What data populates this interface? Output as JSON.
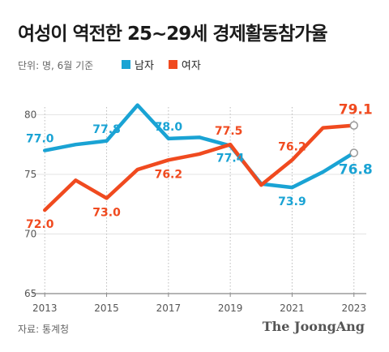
{
  "title": "여성이 역전한 25~29세 경제활동참가율",
  "unit_note": "단위: 명, 6월 기준",
  "source": "자료: 통계청",
  "brand": "The JoongAng",
  "colors": {
    "male": "#1aa3d4",
    "female": "#f04a1f",
    "grid": "#e3e3e3",
    "axis": "#888888"
  },
  "chart_data": {
    "type": "line",
    "x": [
      2013,
      2014,
      2015,
      2016,
      2017,
      2018,
      2019,
      2020,
      2021,
      2022,
      2023
    ],
    "series": [
      {
        "name": "남자",
        "color": "#1aa3d4",
        "values": [
          77.0,
          77.5,
          77.8,
          80.8,
          78.0,
          78.1,
          77.4,
          74.2,
          73.9,
          75.2,
          76.8
        ]
      },
      {
        "name": "여자",
        "color": "#f04a1f",
        "values": [
          72.0,
          74.5,
          73.0,
          75.4,
          76.2,
          76.7,
          77.5,
          74.1,
          76.2,
          78.9,
          79.1
        ]
      }
    ],
    "data_labels": {
      "남자": [
        {
          "x": 2013,
          "text": "77.0"
        },
        {
          "x": 2015,
          "text": "77.8"
        },
        {
          "x": 2017,
          "text": "78.0"
        },
        {
          "x": 2019,
          "text": "77.4"
        },
        {
          "x": 2021,
          "text": "73.9"
        },
        {
          "x": 2023,
          "text": "76.8"
        }
      ],
      "여자": [
        {
          "x": 2013,
          "text": "72.0"
        },
        {
          "x": 2015,
          "text": "73.0"
        },
        {
          "x": 2017,
          "text": "76.2"
        },
        {
          "x": 2019,
          "text": "77.5"
        },
        {
          "x": 2021,
          "text": "76.2"
        },
        {
          "x": 2023,
          "text": "79.1"
        }
      ]
    },
    "x_ticks": [
      2013,
      2015,
      2017,
      2019,
      2021,
      2023
    ],
    "y_ticks": [
      65,
      70,
      75,
      80
    ],
    "ylim": [
      65,
      82
    ],
    "xlim": [
      2012.6,
      2023.4
    ],
    "grid": true,
    "legend_position": "top-left"
  }
}
